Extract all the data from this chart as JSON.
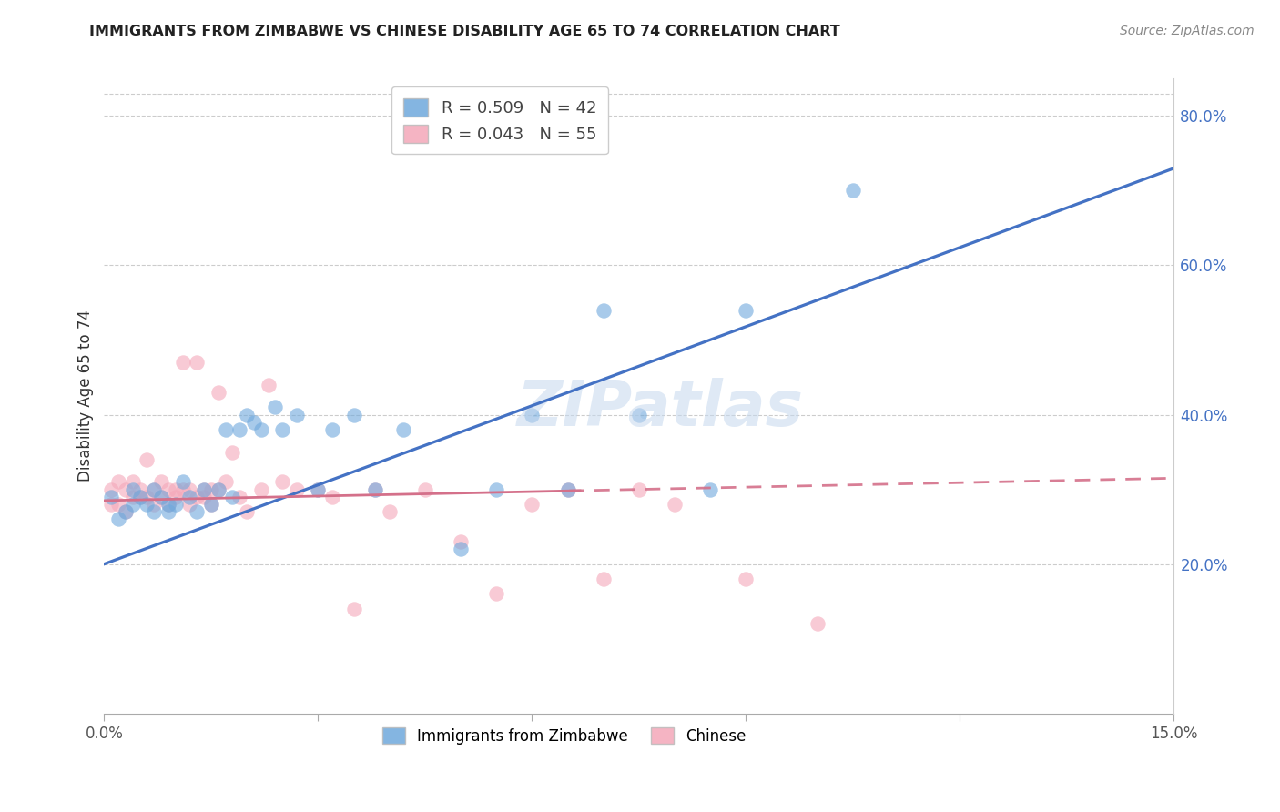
{
  "title": "IMMIGRANTS FROM ZIMBABWE VS CHINESE DISABILITY AGE 65 TO 74 CORRELATION CHART",
  "source": "Source: ZipAtlas.com",
  "ylabel": "Disability Age 65 to 74",
  "xlim": [
    0.0,
    0.15
  ],
  "ylim": [
    0.0,
    0.85
  ],
  "R1": 0.509,
  "N1": 42,
  "R2": 0.043,
  "N2": 55,
  "color_blue": "#6fa8dc",
  "color_pink": "#f4a7b9",
  "color_blue_line": "#4472C4",
  "color_pink_line": "#d4708a",
  "legend1_label": "Immigrants from Zimbabwe",
  "legend2_label": "Chinese",
  "blue_x": [
    0.001,
    0.002,
    0.003,
    0.004,
    0.004,
    0.005,
    0.006,
    0.007,
    0.007,
    0.008,
    0.009,
    0.009,
    0.01,
    0.011,
    0.012,
    0.013,
    0.014,
    0.015,
    0.016,
    0.017,
    0.018,
    0.019,
    0.02,
    0.021,
    0.022,
    0.024,
    0.025,
    0.027,
    0.03,
    0.032,
    0.035,
    0.038,
    0.042,
    0.05,
    0.055,
    0.06,
    0.065,
    0.07,
    0.075,
    0.085,
    0.09,
    0.105
  ],
  "blue_y": [
    0.29,
    0.26,
    0.27,
    0.28,
    0.3,
    0.29,
    0.28,
    0.3,
    0.27,
    0.29,
    0.28,
    0.27,
    0.28,
    0.31,
    0.29,
    0.27,
    0.3,
    0.28,
    0.3,
    0.38,
    0.29,
    0.38,
    0.4,
    0.39,
    0.38,
    0.41,
    0.38,
    0.4,
    0.3,
    0.38,
    0.4,
    0.3,
    0.38,
    0.22,
    0.3,
    0.4,
    0.3,
    0.54,
    0.4,
    0.3,
    0.54,
    0.7
  ],
  "pink_x": [
    0.001,
    0.001,
    0.002,
    0.002,
    0.003,
    0.003,
    0.004,
    0.004,
    0.005,
    0.005,
    0.006,
    0.006,
    0.007,
    0.007,
    0.008,
    0.008,
    0.009,
    0.009,
    0.01,
    0.01,
    0.011,
    0.011,
    0.012,
    0.012,
    0.013,
    0.013,
    0.014,
    0.014,
    0.015,
    0.015,
    0.016,
    0.016,
    0.017,
    0.018,
    0.019,
    0.02,
    0.022,
    0.023,
    0.025,
    0.027,
    0.03,
    0.032,
    0.035,
    0.038,
    0.04,
    0.045,
    0.05,
    0.055,
    0.06,
    0.065,
    0.07,
    0.075,
    0.08,
    0.09,
    0.1
  ],
  "pink_y": [
    0.3,
    0.28,
    0.31,
    0.28,
    0.3,
    0.27,
    0.31,
    0.29,
    0.3,
    0.29,
    0.34,
    0.29,
    0.3,
    0.28,
    0.31,
    0.29,
    0.3,
    0.28,
    0.3,
    0.29,
    0.47,
    0.3,
    0.28,
    0.3,
    0.47,
    0.29,
    0.3,
    0.29,
    0.3,
    0.28,
    0.3,
    0.43,
    0.31,
    0.35,
    0.29,
    0.27,
    0.3,
    0.44,
    0.31,
    0.3,
    0.3,
    0.29,
    0.14,
    0.3,
    0.27,
    0.3,
    0.23,
    0.16,
    0.28,
    0.3,
    0.18,
    0.3,
    0.28,
    0.18,
    0.12
  ]
}
